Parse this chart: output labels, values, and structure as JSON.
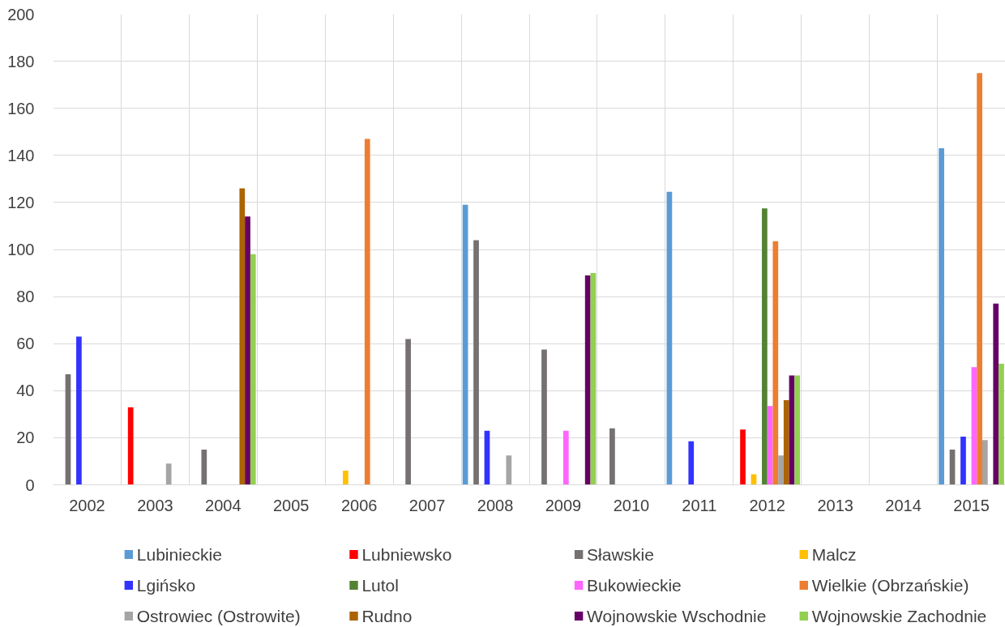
{
  "chart_data": {
    "type": "bar",
    "categories": [
      "2002",
      "2003",
      "2004",
      "2005",
      "2006",
      "2007",
      "2008",
      "2009",
      "2010",
      "2011",
      "2012",
      "2013",
      "2014",
      "2015"
    ],
    "series": [
      {
        "name": "Lubinieckie",
        "color": "#5b9bd5",
        "values": [
          null,
          null,
          null,
          null,
          null,
          null,
          119,
          null,
          null,
          124.5,
          null,
          null,
          null,
          143
        ]
      },
      {
        "name": "Lubniewsko",
        "color": "#ff0000",
        "values": [
          null,
          33,
          null,
          null,
          null,
          null,
          null,
          null,
          null,
          null,
          23.5,
          null,
          null,
          null
        ]
      },
      {
        "name": "Sławskie",
        "color": "#767171",
        "values": [
          47,
          null,
          15,
          null,
          null,
          62,
          104,
          57.5,
          24,
          null,
          null,
          null,
          null,
          15
        ]
      },
      {
        "name": "Malcz",
        "color": "#ffc000",
        "values": [
          null,
          null,
          null,
          null,
          6,
          null,
          null,
          null,
          null,
          null,
          4.5,
          null,
          null,
          null
        ]
      },
      {
        "name": "Lgińsko",
        "color": "#3333ff",
        "values": [
          63,
          null,
          null,
          null,
          null,
          null,
          23,
          null,
          null,
          18.5,
          null,
          null,
          null,
          20.5
        ]
      },
      {
        "name": "Lutol",
        "color": "#548235",
        "values": [
          null,
          null,
          null,
          null,
          null,
          null,
          null,
          null,
          null,
          null,
          117.5,
          null,
          null,
          null
        ]
      },
      {
        "name": "Bukowieckie",
        "color": "#ff66ff",
        "values": [
          null,
          null,
          null,
          null,
          null,
          null,
          null,
          23,
          null,
          null,
          33.5,
          null,
          null,
          50
        ]
      },
      {
        "name": "Wielkie (Obrzańskie)",
        "color": "#ed7d31",
        "values": [
          null,
          null,
          null,
          null,
          147,
          null,
          null,
          null,
          null,
          null,
          103.5,
          null,
          null,
          175
        ]
      },
      {
        "name": "Ostrowiec (Ostrowite)",
        "color": "#a5a5a5",
        "values": [
          null,
          9,
          null,
          null,
          null,
          null,
          12.5,
          null,
          null,
          null,
          12.5,
          null,
          null,
          19
        ]
      },
      {
        "name": "Rudno",
        "color": "#ab6400",
        "values": [
          null,
          null,
          126,
          null,
          null,
          null,
          null,
          null,
          null,
          null,
          36,
          null,
          null,
          null
        ]
      },
      {
        "name": "Wojnowskie Wschodnie",
        "color": "#660066",
        "values": [
          null,
          null,
          114,
          null,
          null,
          null,
          null,
          89,
          null,
          null,
          46.5,
          null,
          null,
          77
        ]
      },
      {
        "name": "Wojnowskie Zachodnie",
        "color": "#92d050",
        "values": [
          null,
          null,
          98,
          null,
          null,
          null,
          null,
          90,
          null,
          null,
          46.5,
          null,
          null,
          51.5
        ]
      }
    ],
    "ylim": [
      0,
      200
    ],
    "yticks": [
      0,
      20,
      40,
      60,
      80,
      100,
      120,
      140,
      160,
      180,
      200
    ],
    "grid": true,
    "legend": "bottom"
  }
}
